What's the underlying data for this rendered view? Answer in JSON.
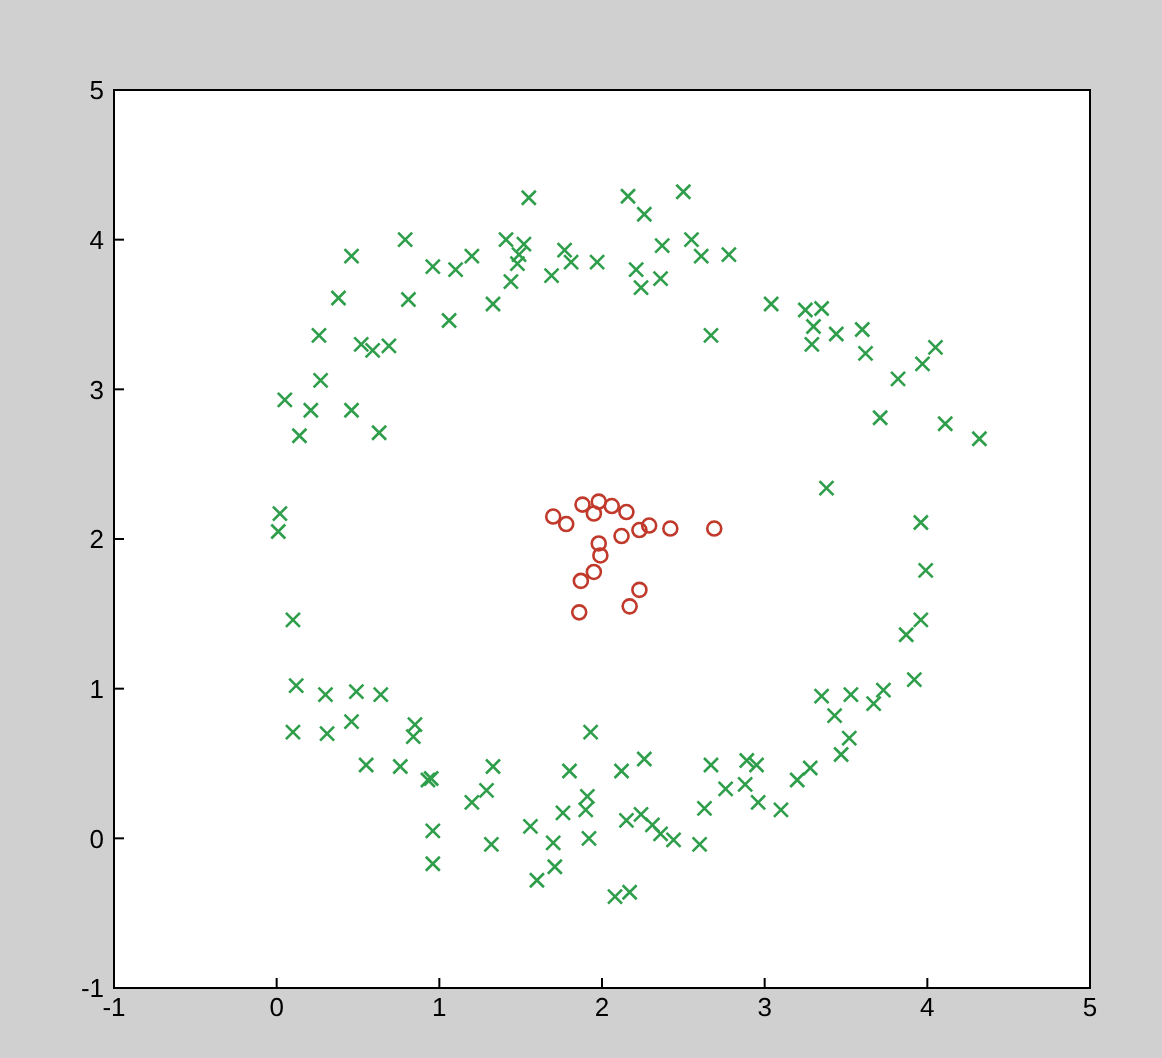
{
  "chart_data": {
    "type": "scatter",
    "xlim": [
      -1,
      5
    ],
    "ylim": [
      -1,
      5
    ],
    "xticks": [
      -1,
      0,
      1,
      2,
      3,
      4,
      5
    ],
    "yticks": [
      -1,
      0,
      1,
      2,
      3,
      4,
      5
    ],
    "series": [
      {
        "color": "#2e9e4a",
        "marker": "cross",
        "x": [
          1.55,
          1.41,
          1.49,
          1.52,
          1.48,
          1.2,
          1.1,
          0.96,
          0.79,
          0.46,
          0.38,
          0.81,
          1.06,
          1.33,
          1.44,
          1.69,
          1.81,
          1.97,
          1.77,
          2.16,
          2.26,
          2.5,
          2.37,
          2.21,
          2.36,
          2.55,
          2.61,
          2.78,
          2.24,
          2.67,
          3.04,
          3.25,
          3.35,
          3.44,
          3.3,
          3.29,
          3.6,
          3.62,
          3.82,
          3.97,
          4.05,
          3.71,
          4.11,
          4.32,
          3.38,
          0.26,
          0.52,
          0.59,
          0.69,
          0.27,
          0.05,
          0.21,
          0.46,
          0.63,
          0.14,
          0.02,
          0.01,
          0.1,
          0.12,
          0.3,
          0.49,
          0.64,
          0.1,
          0.31,
          0.46,
          0.84,
          0.85,
          0.55,
          0.76,
          0.93,
          1.2,
          1.29,
          1.33,
          0.95,
          1.56,
          1.93,
          1.8,
          1.76,
          1.92,
          1.9,
          1.32,
          0.96,
          0.96,
          2.12,
          2.26,
          2.31,
          2.44,
          2.63,
          2.67,
          2.76,
          2.88,
          2.96,
          2.95,
          3.1,
          3.2,
          3.28,
          3.47,
          3.52,
          3.35,
          3.43,
          3.53,
          3.73,
          3.67,
          3.92,
          3.87,
          3.96,
          3.99,
          3.96,
          2.89,
          2.24,
          2.15,
          2.36,
          2.08,
          1.71,
          1.6,
          1.7,
          1.91,
          2.6,
          2.17
        ],
        "values": [
          4.28,
          4.0,
          3.9,
          3.97,
          3.84,
          3.89,
          3.8,
          3.82,
          4.0,
          3.89,
          3.61,
          3.6,
          3.46,
          3.57,
          3.72,
          3.76,
          3.85,
          3.85,
          3.93,
          4.29,
          4.17,
          4.32,
          3.96,
          3.8,
          3.74,
          4.0,
          3.89,
          3.9,
          3.68,
          3.36,
          3.57,
          3.53,
          3.54,
          3.37,
          3.42,
          3.3,
          3.4,
          3.24,
          3.07,
          3.17,
          3.28,
          2.81,
          2.77,
          2.67,
          2.34,
          3.36,
          3.3,
          3.26,
          3.29,
          3.06,
          2.93,
          2.86,
          2.86,
          2.71,
          2.69,
          2.17,
          2.05,
          1.46,
          1.02,
          0.96,
          0.98,
          0.96,
          0.71,
          0.7,
          0.78,
          0.68,
          0.76,
          0.49,
          0.48,
          0.39,
          0.24,
          0.32,
          0.48,
          0.4,
          0.08,
          0.71,
          0.45,
          0.17,
          0.0,
          0.19,
          -0.04,
          -0.17,
          0.05,
          0.45,
          0.53,
          0.09,
          -0.01,
          0.2,
          0.49,
          0.33,
          0.36,
          0.24,
          0.49,
          0.19,
          0.39,
          0.47,
          0.56,
          0.67,
          0.95,
          0.82,
          0.96,
          0.99,
          0.9,
          1.06,
          1.36,
          1.46,
          1.79,
          2.11,
          0.52,
          0.16,
          0.12,
          0.03,
          -0.39,
          -0.19,
          -0.28,
          -0.03,
          0.28,
          -0.04,
          -0.36
        ]
      },
      {
        "color": "#c0392b",
        "marker": "circle",
        "x": [
          1.7,
          1.78,
          1.88,
          1.98,
          2.06,
          1.95,
          2.15,
          2.23,
          2.29,
          2.42,
          2.69,
          1.98,
          1.99,
          1.95,
          1.87,
          1.86,
          2.23,
          2.17,
          2.12
        ],
        "values": [
          2.15,
          2.1,
          2.23,
          2.25,
          2.22,
          2.17,
          2.18,
          2.06,
          2.09,
          2.07,
          2.07,
          1.97,
          1.89,
          1.78,
          1.72,
          1.51,
          1.66,
          1.55,
          2.02
        ]
      }
    ]
  }
}
